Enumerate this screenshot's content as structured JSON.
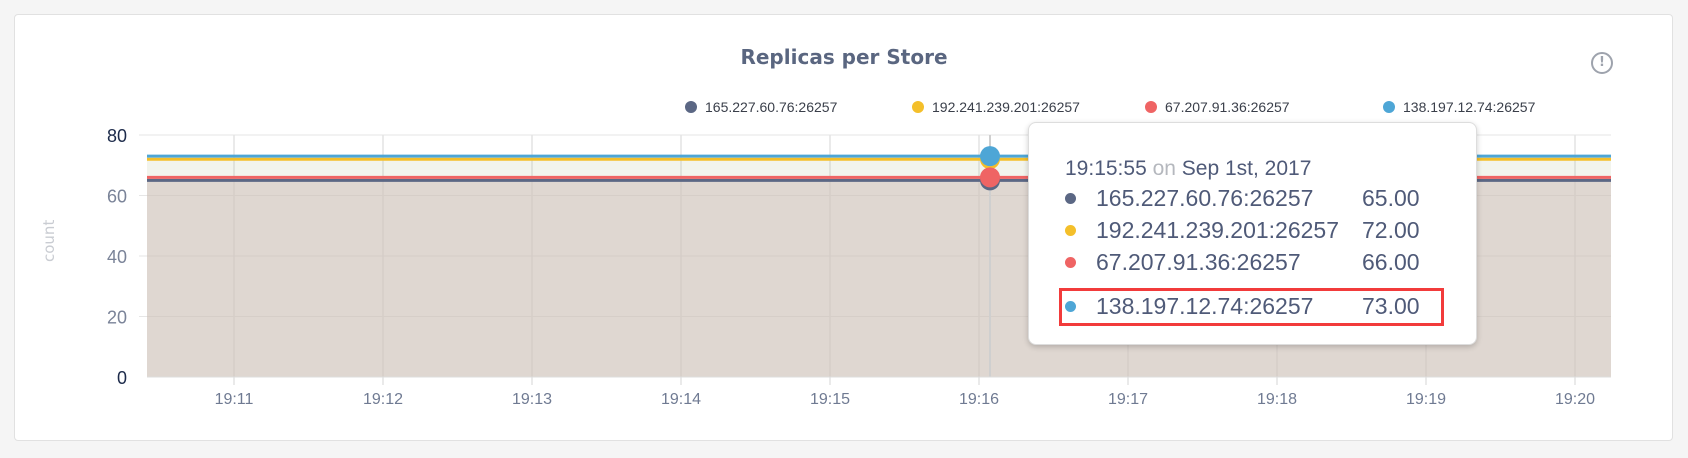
{
  "title": "Replicas per Store",
  "info_icon": "info-circle-icon",
  "chart_data": {
    "type": "area",
    "title": "Replicas per Store",
    "ylabel": "count",
    "xlabel": "",
    "ylim": [
      0,
      80
    ],
    "yticks": [
      "0",
      "20",
      "40",
      "60",
      "80"
    ],
    "xticks": [
      "19:11",
      "19:12",
      "19:13",
      "19:14",
      "19:15",
      "19:16",
      "19:17",
      "19:18",
      "19:19",
      "19:20"
    ],
    "grid": true,
    "legend_position": "top",
    "series": [
      {
        "name": "165.227.60.76:26257",
        "color": "#5b6784",
        "value": 65
      },
      {
        "name": "192.241.239.201:26257",
        "color": "#f4bf2a",
        "value": 72
      },
      {
        "name": "67.207.91.36:26257",
        "color": "#ef6464",
        "value": 66
      },
      {
        "name": "138.197.12.74:26257",
        "color": "#4ea6d6",
        "value": 73
      }
    ]
  },
  "tooltip": {
    "time": "19:15:55",
    "on": "on",
    "date": "Sep 1st, 2017",
    "rows": [
      {
        "label": "165.227.60.76:26257",
        "value": "65.00"
      },
      {
        "label": "192.241.239.201:26257",
        "value": "72.00"
      },
      {
        "label": "67.207.91.36:26257",
        "value": "66.00"
      },
      {
        "label": "138.197.12.74:26257",
        "value": "73.00"
      }
    ],
    "highlighted_row": 3
  }
}
